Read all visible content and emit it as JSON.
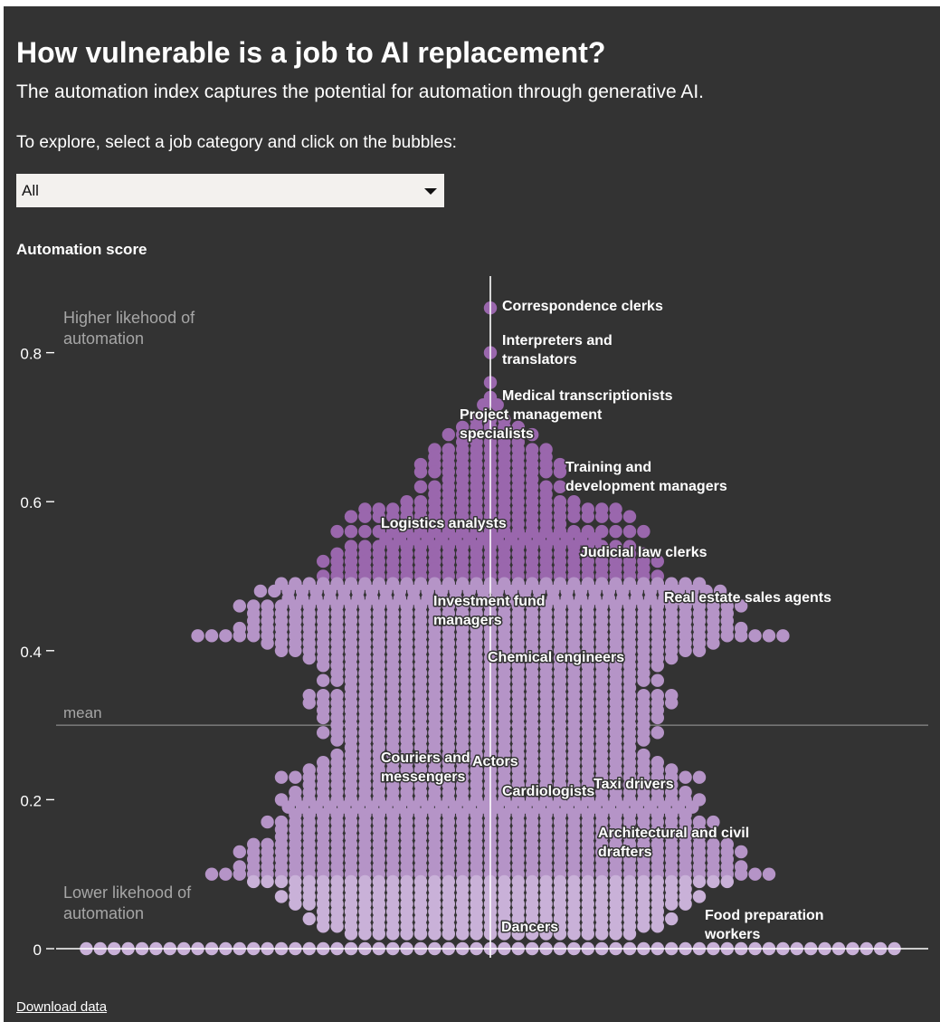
{
  "header": {
    "title": "How vulnerable is a job to AI replacement?",
    "subtitle": "The automation index captures the potential for automation through generative AI.",
    "instruction": "To explore, select a job category and click on the bubbles:"
  },
  "filter": {
    "selected": "All"
  },
  "colors": {
    "background": "#333333",
    "bubble_light": "#c9b1d8",
    "bubble_dark": "#9a67ad",
    "axis": "#ffffff",
    "mean_line": "#8a8a8a",
    "annotation": "#a6a6a6"
  },
  "chart_data": {
    "type": "scatter",
    "chart_style": "beeswarm",
    "ylabel": "Automation score",
    "ylim": [
      0,
      0.9
    ],
    "yticks": [
      {
        "value": 0,
        "label": "0"
      },
      {
        "value": 0.2,
        "label": "0.2"
      },
      {
        "value": 0.4,
        "label": "0.4"
      },
      {
        "value": 0.6,
        "label": "0.6"
      },
      {
        "value": 0.8,
        "label": "0.8"
      }
    ],
    "mean": {
      "value": 0.3,
      "label": "mean"
    },
    "annotations": {
      "high": [
        "Higher likehood of",
        "automation"
      ],
      "low": [
        "Lower likehood of",
        "automation"
      ]
    },
    "labeled_jobs": [
      {
        "name": [
          "Correspondence clerks"
        ],
        "score": 0.86
      },
      {
        "name": [
          "Interpreters and",
          "translators"
        ],
        "score": 0.8
      },
      {
        "name": [
          "Medical transcriptionists"
        ],
        "score": 0.74
      },
      {
        "name": [
          "Project management",
          "specialists"
        ],
        "score": 0.69
      },
      {
        "name": [
          "Training and",
          "development managers"
        ],
        "score": 0.66
      },
      {
        "name": [
          "Logistics analysts"
        ],
        "score": 0.58
      },
      {
        "name": [
          "Judicial law clerks"
        ],
        "score": 0.53
      },
      {
        "name": [
          "Real estate sales agents"
        ],
        "score": 0.47
      },
      {
        "name": [
          "Investment fund",
          "managers"
        ],
        "score": 0.46
      },
      {
        "name": [
          "Chemical engineers"
        ],
        "score": 0.39
      },
      {
        "name": [
          "Couriers and",
          "messengers"
        ],
        "score": 0.25
      },
      {
        "name": [
          "Actors"
        ],
        "score": 0.25
      },
      {
        "name": [
          "Cardiologists"
        ],
        "score": 0.2
      },
      {
        "name": [
          "Taxi drivers"
        ],
        "score": 0.21
      },
      {
        "name": [
          "Architectural and civil",
          "drafters"
        ],
        "score": 0.14
      },
      {
        "name": [
          "Food preparation",
          "workers"
        ],
        "score": 0.03
      },
      {
        "name": [
          "Dancers"
        ],
        "score": 0.03
      }
    ],
    "distribution": [
      {
        "score": 0.86,
        "count": 1
      },
      {
        "score": 0.8,
        "count": 1
      },
      {
        "score": 0.76,
        "count": 1
      },
      {
        "score": 0.74,
        "count": 1
      },
      {
        "score": 0.73,
        "count": 2
      },
      {
        "score": 0.71,
        "count": 3
      },
      {
        "score": 0.7,
        "count": 5
      },
      {
        "score": 0.69,
        "count": 7
      },
      {
        "score": 0.68,
        "count": 5
      },
      {
        "score": 0.67,
        "count": 9
      },
      {
        "score": 0.66,
        "count": 9
      },
      {
        "score": 0.65,
        "count": 11
      },
      {
        "score": 0.64,
        "count": 11
      },
      {
        "score": 0.63,
        "count": 7
      },
      {
        "score": 0.62,
        "count": 11
      },
      {
        "score": 0.61,
        "count": 9
      },
      {
        "score": 0.6,
        "count": 13
      },
      {
        "score": 0.59,
        "count": 19
      },
      {
        "score": 0.58,
        "count": 21
      },
      {
        "score": 0.57,
        "count": 11
      },
      {
        "score": 0.56,
        "count": 23
      },
      {
        "score": 0.55,
        "count": 16
      },
      {
        "score": 0.54,
        "count": 21
      },
      {
        "score": 0.53,
        "count": 23
      },
      {
        "score": 0.52,
        "count": 25
      },
      {
        "score": 0.51,
        "count": 23
      },
      {
        "score": 0.5,
        "count": 25
      },
      {
        "score": 0.49,
        "count": 31
      },
      {
        "score": 0.48,
        "count": 34
      },
      {
        "score": 0.47,
        "count": 30
      },
      {
        "score": 0.46,
        "count": 37
      },
      {
        "score": 0.45,
        "count": 35
      },
      {
        "score": 0.44,
        "count": 35
      },
      {
        "score": 0.43,
        "count": 37
      },
      {
        "score": 0.42,
        "count": 43
      },
      {
        "score": 0.41,
        "count": 33
      },
      {
        "score": 0.4,
        "count": 31
      },
      {
        "score": 0.39,
        "count": 27
      },
      {
        "score": 0.38,
        "count": 25
      },
      {
        "score": 0.37,
        "count": 23
      },
      {
        "score": 0.36,
        "count": 25
      },
      {
        "score": 0.35,
        "count": 21
      },
      {
        "score": 0.34,
        "count": 27
      },
      {
        "score": 0.33,
        "count": 27
      },
      {
        "score": 0.32,
        "count": 25
      },
      {
        "score": 0.31,
        "count": 25
      },
      {
        "score": 0.3,
        "count": 23
      },
      {
        "score": 0.29,
        "count": 25
      },
      {
        "score": 0.28,
        "count": 23
      },
      {
        "score": 0.27,
        "count": 21
      },
      {
        "score": 0.26,
        "count": 23
      },
      {
        "score": 0.25,
        "count": 25
      },
      {
        "score": 0.24,
        "count": 27
      },
      {
        "score": 0.23,
        "count": 31
      },
      {
        "score": 0.22,
        "count": 27
      },
      {
        "score": 0.21,
        "count": 29
      },
      {
        "score": 0.2,
        "count": 31
      },
      {
        "score": 0.19,
        "count": 30
      },
      {
        "score": 0.18,
        "count": 29
      },
      {
        "score": 0.17,
        "count": 33
      },
      {
        "score": 0.16,
        "count": 31
      },
      {
        "score": 0.15,
        "count": 31
      },
      {
        "score": 0.14,
        "count": 35
      },
      {
        "score": 0.13,
        "count": 37
      },
      {
        "score": 0.12,
        "count": 35
      },
      {
        "score": 0.11,
        "count": 37
      },
      {
        "score": 0.1,
        "count": 41
      },
      {
        "score": 0.09,
        "count": 35
      },
      {
        "score": 0.08,
        "count": 29
      },
      {
        "score": 0.07,
        "count": 31
      },
      {
        "score": 0.06,
        "count": 29
      },
      {
        "score": 0.05,
        "count": 25
      },
      {
        "score": 0.04,
        "count": 27
      },
      {
        "score": 0.03,
        "count": 25
      },
      {
        "score": 0.02,
        "count": 21
      },
      {
        "score": 0.0,
        "count": 59
      }
    ]
  },
  "footer": {
    "download_label": "Download data"
  }
}
